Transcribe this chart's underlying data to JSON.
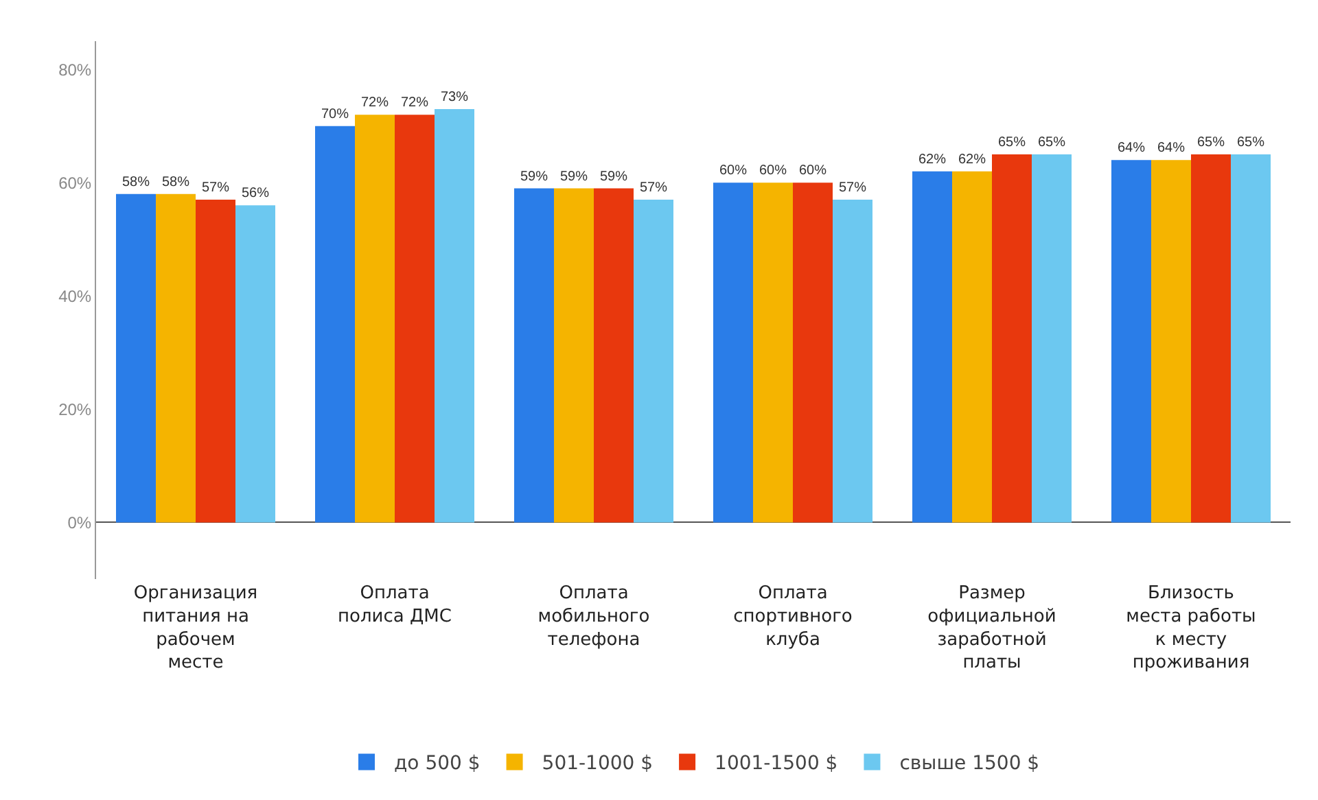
{
  "chart_data": {
    "type": "bar",
    "categories": [
      "Организация питания на рабочем месте",
      "Оплата полиса ДМС",
      "Оплата мобильного телефона",
      "Оплата спортивного клуба",
      "Размер официальной заработной платы",
      "Близость места работы к месту проживания"
    ],
    "series": [
      {
        "name": "до 500 $",
        "color": "#2a7de8",
        "values": [
          58,
          70,
          59,
          60,
          62,
          64
        ],
        "value_labels": [
          "58%",
          "70%",
          "59%",
          "60%",
          "62%",
          "64%"
        ]
      },
      {
        "name": "501-1000 $",
        "color": "#f5b400",
        "values": [
          58,
          72,
          59,
          60,
          62,
          64
        ],
        "value_labels": [
          "58%",
          "72%",
          "59%",
          "60%",
          "62%",
          "64%"
        ]
      },
      {
        "name": "1001-1500 $",
        "color": "#e8380d",
        "values": [
          57,
          72,
          59,
          60,
          65,
          65
        ],
        "value_labels": [
          "57%",
          "72%",
          "59%",
          "60%",
          "65%",
          "65%"
        ]
      },
      {
        "name": "свыше 1500 $",
        "color": "#6cc8f0",
        "values": [
          56,
          73,
          57,
          57,
          65,
          65
        ],
        "value_labels": [
          "56%",
          "73%",
          "57%",
          "57%",
          "65%",
          "65%"
        ]
      }
    ],
    "ylim": [
      -10,
      85
    ],
    "yticks": [
      {
        "value": 0,
        "label": "0%"
      },
      {
        "value": 20,
        "label": "20%"
      },
      {
        "value": 40,
        "label": "40%"
      },
      {
        "value": 60,
        "label": "60%"
      },
      {
        "value": 80,
        "label": "80%"
      }
    ],
    "legend": "bottom"
  }
}
